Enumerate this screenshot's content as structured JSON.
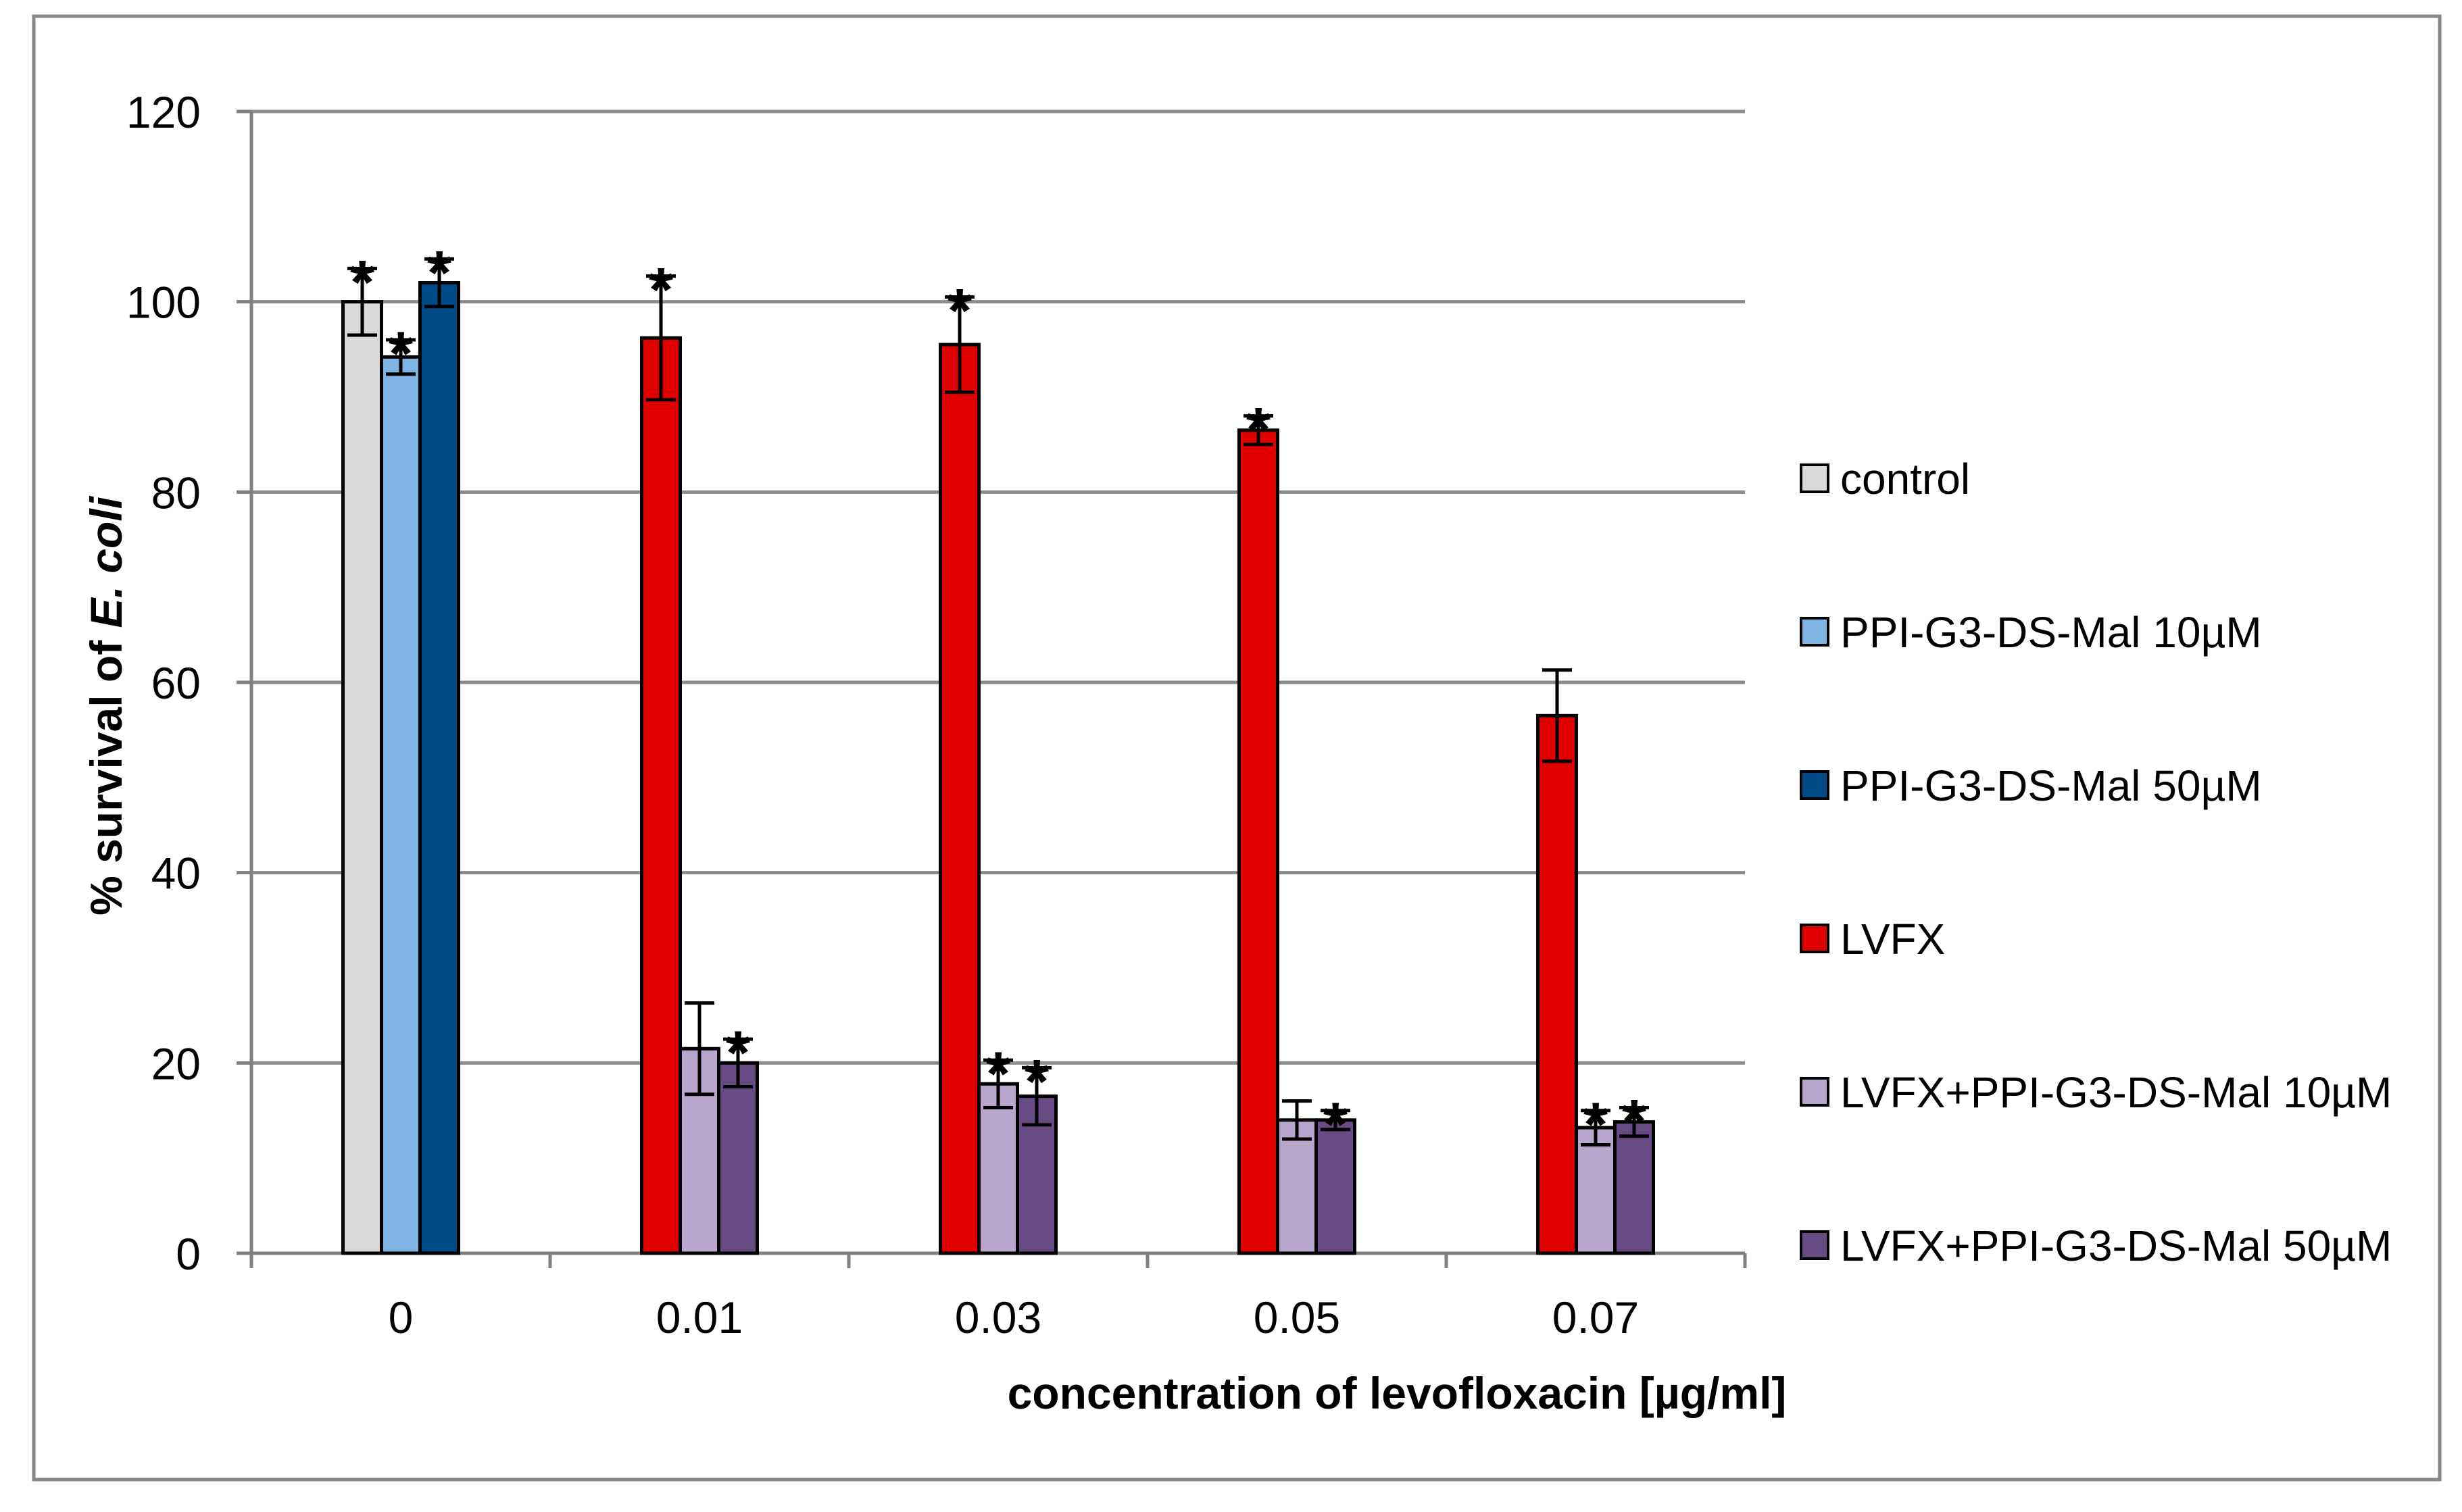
{
  "chart_data": {
    "type": "bar",
    "title": "",
    "xlabel": "concentration of levofloxacin [µg/ml]",
    "ylabel": {
      "prefix": "% survival of ",
      "italic": "E. coli"
    },
    "ylim": [
      0,
      120
    ],
    "yticks": [
      0,
      20,
      40,
      60,
      80,
      100,
      120
    ],
    "grid": true,
    "legend_position": "right",
    "categories": [
      "0",
      "0.01",
      "0.03",
      "0.05",
      "0.07"
    ],
    "groups": [
      {
        "category": "0",
        "bars": [
          {
            "series": "control",
            "value": 100,
            "error": 3.5,
            "significant": true
          },
          {
            "series": "PPI-G3-DS-Mal 10µM",
            "value": 94.2,
            "error": 1.8,
            "significant": true
          },
          {
            "series": "PPI-G3-DS-Mal 50µM",
            "value": 102,
            "error": 2.5,
            "significant": true
          }
        ]
      },
      {
        "category": "0.01",
        "bars": [
          {
            "series": "LVFX",
            "value": 96.2,
            "error": 6.5,
            "significant": true
          },
          {
            "series": "LVFX+PPI-G3-DS-Mal 10µM",
            "value": 21.5,
            "error": 4.8,
            "significant": false
          },
          {
            "series": "LVFX+PPI-G3-DS-Mal 50µM",
            "value": 20,
            "error": 2.5,
            "significant": true
          }
        ]
      },
      {
        "category": "0.03",
        "bars": [
          {
            "series": "LVFX",
            "value": 95.5,
            "error": 5,
            "significant": true
          },
          {
            "series": "LVFX+PPI-G3-DS-Mal 10µM",
            "value": 17.8,
            "error": 2.5,
            "significant": true
          },
          {
            "series": "LVFX+PPI-G3-DS-Mal 50µM",
            "value": 16.5,
            "error": 3,
            "significant": true
          }
        ]
      },
      {
        "category": "0.05",
        "bars": [
          {
            "series": "LVFX",
            "value": 86.5,
            "error": 1.5,
            "significant": true
          },
          {
            "series": "LVFX+PPI-G3-DS-Mal 10µM",
            "value": 14,
            "error": 2,
            "significant": false
          },
          {
            "series": "LVFX+PPI-G3-DS-Mal 50µM",
            "value": 14,
            "error": 1,
            "significant": true
          }
        ]
      },
      {
        "category": "0.07",
        "bars": [
          {
            "series": "LVFX",
            "value": 56.5,
            "error": 4.8,
            "significant": false
          },
          {
            "series": "LVFX+PPI-G3-DS-Mal 10µM",
            "value": 13.2,
            "error": 1.8,
            "significant": true
          },
          {
            "series": "LVFX+PPI-G3-DS-Mal 50µM",
            "value": 13.8,
            "error": 1.5,
            "significant": true
          }
        ]
      }
    ],
    "series": [
      {
        "name": "control",
        "color": "#d9d9d9"
      },
      {
        "name": "PPI-G3-DS-Mal 10µM",
        "color": "#7fb5e4"
      },
      {
        "name": "PPI-G3-DS-Mal 50µM",
        "color": "#004b87"
      },
      {
        "name": "LVFX",
        "color": "#e00000"
      },
      {
        "name": "LVFX+PPI-G3-DS-Mal 10µM",
        "color": "#b9a6cc"
      },
      {
        "name": "LVFX+PPI-G3-DS-Mal 50µM",
        "color": "#674c84"
      }
    ],
    "significance_marker": "*",
    "axis_color": "#808080",
    "grid_color": "#8c8c8c",
    "frame_color": "#888888",
    "bar_outline_color": "#000000"
  }
}
